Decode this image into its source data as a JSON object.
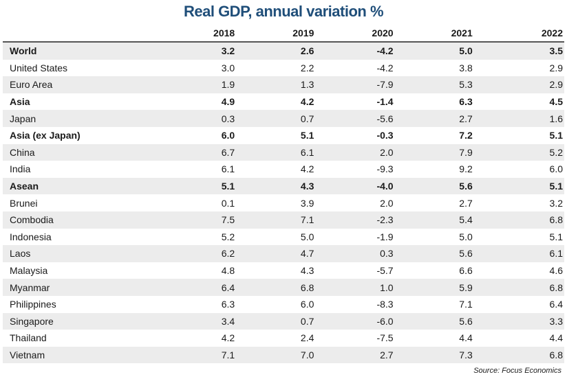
{
  "title": "Real GDP, annual variation %",
  "table": {
    "columns": [
      "2018",
      "2019",
      "2020",
      "2021",
      "2022"
    ],
    "rows": [
      {
        "label": "World",
        "values": [
          "3.2",
          "2.6",
          "-4.2",
          "5.0",
          "3.5"
        ]
      },
      {
        "label": "United States",
        "values": [
          "3.0",
          "2.2",
          "-4.2",
          "3.8",
          "2.9"
        ]
      },
      {
        "label": "Euro Area",
        "values": [
          "1.9",
          "1.3",
          "-7.9",
          "5.3",
          "2.9"
        ]
      },
      {
        "label": "Asia",
        "values": [
          "4.9",
          "4.2",
          "-1.4",
          "6.3",
          "4.5"
        ]
      },
      {
        "label": "Japan",
        "values": [
          "0.3",
          "0.7",
          "-5.6",
          "2.7",
          "1.6"
        ]
      },
      {
        "label": "Asia (ex Japan)",
        "values": [
          "6.0",
          "5.1",
          "-0.3",
          "7.2",
          "5.1"
        ]
      },
      {
        "label": "China",
        "values": [
          "6.7",
          "6.1",
          "2.0",
          "7.9",
          "5.2"
        ]
      },
      {
        "label": "India",
        "values": [
          "6.1",
          "4.2",
          "-9.3",
          "9.2",
          "6.0"
        ]
      },
      {
        "label": "Asean",
        "values": [
          "5.1",
          "4.3",
          "-4.0",
          "5.6",
          "5.1"
        ]
      },
      {
        "label": "Brunei",
        "values": [
          "0.1",
          "3.9",
          "2.0",
          "2.7",
          "3.2"
        ]
      },
      {
        "label": "Combodia",
        "values": [
          "7.5",
          "7.1",
          "-2.3",
          "5.4",
          "6.8"
        ]
      },
      {
        "label": "Indonesia",
        "values": [
          "5.2",
          "5.0",
          "-1.9",
          "5.0",
          "5.1"
        ]
      },
      {
        "label": "Laos",
        "values": [
          "6.2",
          "4.7",
          "0.3",
          "5.6",
          "6.1"
        ]
      },
      {
        "label": "Malaysia",
        "values": [
          "4.8",
          "4.3",
          "-5.7",
          "6.6",
          "4.6"
        ]
      },
      {
        "label": "Myanmar",
        "values": [
          "6.4",
          "6.8",
          "1.0",
          "5.9",
          "6.8"
        ]
      },
      {
        "label": "Philippines",
        "values": [
          "6.3",
          "6.0",
          "-8.3",
          "7.1",
          "6.4"
        ]
      },
      {
        "label": "Singapore",
        "values": [
          "3.4",
          "0.7",
          "-6.0",
          "5.6",
          "3.3"
        ]
      },
      {
        "label": "Thailand",
        "values": [
          "4.2",
          "2.4",
          "-7.5",
          "4.4",
          "4.4"
        ]
      },
      {
        "label": "Vietnam",
        "values": [
          "7.1",
          "7.0",
          "2.7",
          "7.3",
          "6.8"
        ]
      }
    ]
  },
  "source": "Source: Focus Economics"
}
